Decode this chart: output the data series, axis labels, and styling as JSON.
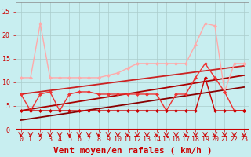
{
  "bg_color": "#c8eef0",
  "grid_color": "#aacccc",
  "xlabel": "Vent moyen/en rafales ( km/h )",
  "xlim": [
    -0.5,
    23.5
  ],
  "ylim": [
    0,
    27
  ],
  "yticks": [
    0,
    5,
    10,
    15,
    20,
    25
  ],
  "xticks": [
    0,
    1,
    2,
    3,
    4,
    5,
    6,
    7,
    8,
    9,
    10,
    11,
    12,
    13,
    14,
    15,
    16,
    17,
    18,
    19,
    20,
    21,
    22,
    23
  ],
  "series": [
    {
      "x": [
        0,
        1,
        2,
        3,
        4,
        5,
        6,
        7,
        8,
        9,
        10,
        11,
        12,
        13,
        14,
        15,
        16,
        17,
        18,
        19,
        20,
        21,
        22,
        23
      ],
      "y": [
        11,
        11,
        22.5,
        11,
        11,
        11,
        11,
        11,
        11,
        11.5,
        12,
        13,
        14,
        14,
        14,
        14,
        14,
        14,
        18,
        22.5,
        22,
        8,
        14,
        14
      ],
      "color": "#ffaaaa",
      "lw": 1.0,
      "marker": "D",
      "ms": 2.0
    },
    {
      "x": [
        0,
        1,
        2,
        3,
        4,
        5,
        6,
        7,
        8,
        9,
        10,
        11,
        12,
        13,
        14,
        15,
        16,
        17,
        18,
        19,
        20,
        21,
        22,
        23
      ],
      "y": [
        7.5,
        4,
        7.5,
        8,
        4,
        7.5,
        8,
        8,
        7.5,
        7.5,
        7.5,
        7.5,
        7.5,
        7.5,
        7.5,
        4,
        7.5,
        7.5,
        11,
        14,
        11,
        8,
        4,
        4
      ],
      "color": "#ee3333",
      "lw": 1.0,
      "marker": "D",
      "ms": 2.0
    },
    {
      "x": [
        0,
        1,
        2,
        3,
        4,
        5,
        6,
        7,
        8,
        9,
        10,
        11,
        12,
        13,
        14,
        15,
        16,
        17,
        18,
        19,
        20,
        21,
        22,
        23
      ],
      "y": [
        4,
        4,
        4,
        4,
        4,
        4,
        4,
        4,
        4,
        4,
        4,
        4,
        4,
        4,
        4,
        4,
        4,
        4,
        4,
        11,
        4,
        4,
        4,
        4
      ],
      "color": "#cc0000",
      "lw": 1.0,
      "marker": "D",
      "ms": 2.0
    },
    {
      "x": [
        0,
        23
      ],
      "y": [
        7.5,
        13.5
      ],
      "color": "#cc2222",
      "lw": 1.3,
      "marker": null,
      "ms": 0
    },
    {
      "x": [
        0,
        23
      ],
      "y": [
        4,
        11.5
      ],
      "color": "#aa0000",
      "lw": 1.3,
      "marker": null,
      "ms": 0
    },
    {
      "x": [
        0,
        23
      ],
      "y": [
        2,
        9
      ],
      "color": "#880000",
      "lw": 1.3,
      "marker": null,
      "ms": 0
    }
  ],
  "hline_y": 0,
  "hline_color": "#cc0000",
  "hline_lw": 1.5,
  "arrow_color": "#cc0000",
  "tick_label_color": "#cc0000",
  "axis_label_color": "#cc0000",
  "tick_label_fontsize": 6,
  "axis_label_fontsize": 8
}
